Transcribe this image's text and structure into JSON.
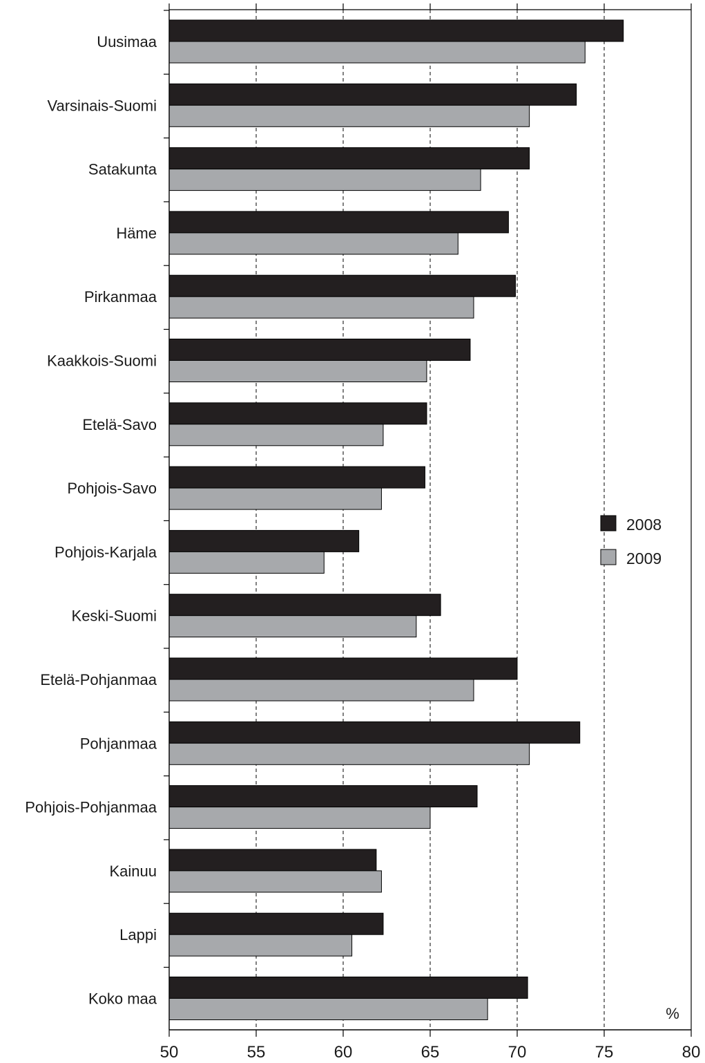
{
  "chart_data": {
    "type": "bar",
    "orientation": "horizontal",
    "categories": [
      "Uusimaa",
      "Varsinais-Suomi",
      "Satakunta",
      "Häme",
      "Pirkanmaa",
      "Kaakkois-Suomi",
      "Etelä-Savo",
      "Pohjois-Savo",
      "Pohjois-Karjala",
      "Keski-Suomi",
      "Etelä-Pohjanmaa",
      "Pohjanmaa",
      "Pohjois-Pohjanmaa",
      "Kainuu",
      "Lappi",
      "Koko maa"
    ],
    "series": [
      {
        "name": "2008",
        "color": "#231f20",
        "values": [
          76.1,
          73.4,
          70.7,
          69.5,
          69.9,
          67.3,
          64.8,
          64.7,
          60.9,
          65.6,
          70.0,
          73.6,
          67.7,
          61.9,
          62.3,
          70.6
        ]
      },
      {
        "name": "2009",
        "color": "#a7a9ac",
        "values": [
          73.9,
          70.7,
          67.9,
          66.6,
          67.5,
          64.8,
          62.3,
          62.2,
          58.9,
          64.2,
          67.5,
          70.7,
          65.0,
          62.2,
          60.5,
          68.3
        ]
      }
    ],
    "xlim": [
      50,
      80
    ],
    "xticks": [
      "50",
      "55",
      "60",
      "65",
      "70",
      "75",
      "80"
    ],
    "unit_label": "%",
    "grid": "dashed vertical",
    "legend_position": "right"
  }
}
